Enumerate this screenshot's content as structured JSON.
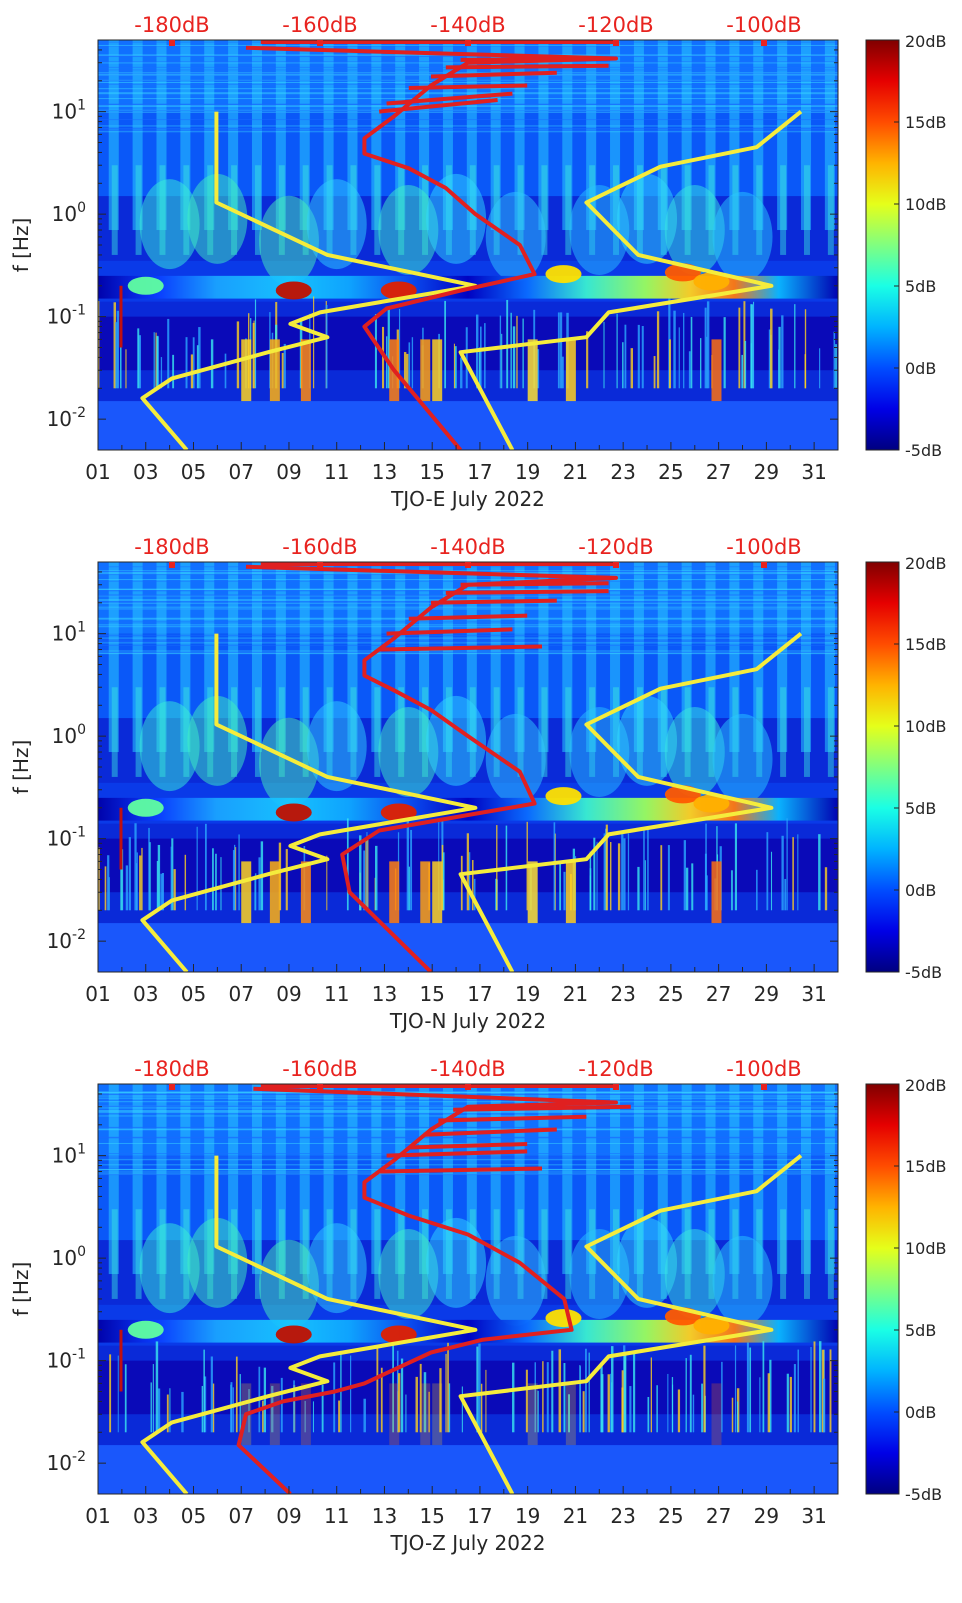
{
  "colors": {
    "colormap": "jet",
    "top_scale_color": "#e8231f",
    "red_curve": "#e02020",
    "yellow_curve": "#f5ec3c"
  },
  "chart_data": [
    {
      "type": "heatmap",
      "station_label": "TJO-E July 2022",
      "ylabel": "f [Hz]",
      "y_scale": "log",
      "y_ticks": [
        "10-2",
        "10-1",
        "100",
        "101"
      ],
      "x_ticks": [
        "01",
        "03",
        "05",
        "07",
        "09",
        "11",
        "13",
        "15",
        "17",
        "19",
        "21",
        "23",
        "25",
        "27",
        "29",
        "31"
      ],
      "xlim": [
        1,
        32
      ],
      "ylim_hz": [
        0.005,
        50
      ],
      "top_axis_labels": [
        "-180dB",
        "-160dB",
        "-140dB",
        "-120dB",
        "-100dB"
      ],
      "colorbar_labels": [
        "20dB",
        "15dB",
        "10dB",
        "5dB",
        "0dB",
        "-5dB"
      ],
      "colorbar_range_db": [
        -5,
        20
      ],
      "noise_model_low_db": [
        [
          -178,
          0.005
        ],
        [
          -184,
          0.016
        ],
        [
          -180,
          0.025
        ],
        [
          -167,
          0.045
        ],
        [
          -159,
          0.063
        ],
        [
          -164,
          0.085
        ],
        [
          -160,
          0.11
        ],
        [
          -139,
          0.2
        ],
        [
          -159,
          0.4
        ],
        [
          -174,
          1.3
        ],
        [
          -174,
          10
        ]
      ],
      "noise_model_high_db": [
        [
          -134,
          0.005
        ],
        [
          -141,
          0.045
        ],
        [
          -124,
          0.063
        ],
        [
          -121,
          0.11
        ],
        [
          -99,
          0.2
        ],
        [
          -117,
          0.4
        ],
        [
          -124,
          1.3
        ],
        [
          -114,
          2.9
        ],
        [
          -101,
          4.5
        ],
        [
          -95,
          10
        ]
      ],
      "red_curve_db": [
        [
          -141,
          0.005
        ],
        [
          -150,
          0.03
        ],
        [
          -154,
          0.08
        ],
        [
          -151,
          0.12
        ],
        [
          -141,
          0.18
        ],
        [
          -131,
          0.26
        ],
        [
          -133,
          0.5
        ],
        [
          -139,
          1.0
        ],
        [
          -143,
          1.8
        ],
        [
          -148,
          2.8
        ],
        [
          -154,
          3.9
        ],
        [
          -154,
          5.5
        ],
        [
          -150,
          9
        ],
        [
          -145,
          18
        ],
        [
          -140,
          30
        ],
        [
          -120,
          33
        ],
        [
          -170,
          42
        ]
      ],
      "red_branches_db": [
        [
          [
            -152,
            10
          ],
          [
            -136,
            13
          ]
        ],
        [
          [
            -151,
            12
          ],
          [
            -134,
            15
          ]
        ],
        [
          [
            -148,
            17
          ],
          [
            -132,
            18
          ]
        ],
        [
          [
            -145,
            22
          ],
          [
            -128,
            24
          ]
        ],
        [
          [
            -143,
            27
          ],
          [
            -121,
            28
          ]
        ],
        [
          [
            -141,
            32
          ],
          [
            -121,
            33
          ]
        ]
      ]
    },
    {
      "type": "heatmap",
      "station_label": "TJO-N July 2022",
      "ylabel": "f [Hz]",
      "y_scale": "log",
      "y_ticks": [
        "10-2",
        "10-1",
        "100",
        "101"
      ],
      "x_ticks": [
        "01",
        "03",
        "05",
        "07",
        "09",
        "11",
        "13",
        "15",
        "17",
        "19",
        "21",
        "23",
        "25",
        "27",
        "29",
        "31"
      ],
      "xlim": [
        1,
        32
      ],
      "ylim_hz": [
        0.005,
        50
      ],
      "top_axis_labels": [
        "-180dB",
        "-160dB",
        "-140dB",
        "-120dB",
        "-100dB"
      ],
      "colorbar_labels": [
        "20dB",
        "15dB",
        "10dB",
        "5dB",
        "0dB",
        "-5dB"
      ],
      "colorbar_range_db": [
        -5,
        20
      ],
      "noise_model_low_db": [
        [
          -178,
          0.005
        ],
        [
          -184,
          0.016
        ],
        [
          -180,
          0.025
        ],
        [
          -167,
          0.045
        ],
        [
          -159,
          0.063
        ],
        [
          -164,
          0.085
        ],
        [
          -160,
          0.11
        ],
        [
          -139,
          0.2
        ],
        [
          -159,
          0.4
        ],
        [
          -174,
          1.3
        ],
        [
          -174,
          10
        ]
      ],
      "noise_model_high_db": [
        [
          -134,
          0.005
        ],
        [
          -141,
          0.045
        ],
        [
          -124,
          0.063
        ],
        [
          -121,
          0.11
        ],
        [
          -99,
          0.2
        ],
        [
          -117,
          0.4
        ],
        [
          -124,
          1.3
        ],
        [
          -114,
          2.9
        ],
        [
          -101,
          4.5
        ],
        [
          -95,
          10
        ]
      ],
      "red_curve_db": [
        [
          -145,
          0.005
        ],
        [
          -156,
          0.03
        ],
        [
          -157,
          0.07
        ],
        [
          -152,
          0.12
        ],
        [
          -140,
          0.17
        ],
        [
          -131,
          0.22
        ],
        [
          -133,
          0.45
        ],
        [
          -140,
          1.0
        ],
        [
          -145,
          1.8
        ],
        [
          -150,
          2.8
        ],
        [
          -154,
          3.9
        ],
        [
          -154,
          5.5
        ],
        [
          -150,
          9
        ],
        [
          -145,
          18
        ],
        [
          -140,
          30
        ],
        [
          -120,
          35
        ],
        [
          -170,
          45
        ]
      ],
      "red_branches_db": [
        [
          [
            -152,
            7
          ],
          [
            -130,
            7.5
          ]
        ],
        [
          [
            -151,
            10
          ],
          [
            -134,
            11
          ]
        ],
        [
          [
            -148,
            14
          ],
          [
            -132,
            15
          ]
        ],
        [
          [
            -145,
            20
          ],
          [
            -128,
            21
          ]
        ],
        [
          [
            -143,
            25
          ],
          [
            -121,
            26
          ]
        ],
        [
          [
            -141,
            30
          ],
          [
            -121,
            31
          ]
        ]
      ]
    },
    {
      "type": "heatmap",
      "station_label": "TJO-Z July 2022",
      "ylabel": "f [Hz]",
      "y_scale": "log",
      "y_ticks": [
        "10-2",
        "10-1",
        "100",
        "101"
      ],
      "x_ticks": [
        "01",
        "03",
        "05",
        "07",
        "09",
        "11",
        "13",
        "15",
        "17",
        "19",
        "21",
        "23",
        "25",
        "27",
        "29",
        "31"
      ],
      "xlim": [
        1,
        32
      ],
      "ylim_hz": [
        0.005,
        50
      ],
      "top_axis_labels": [
        "-180dB",
        "-160dB",
        "-140dB",
        "-120dB",
        "-100dB"
      ],
      "colorbar_labels": [
        "20dB",
        "15dB",
        "10dB",
        "5dB",
        "0dB",
        "-5dB"
      ],
      "colorbar_range_db": [
        -5,
        20
      ],
      "noise_model_low_db": [
        [
          -178,
          0.005
        ],
        [
          -184,
          0.016
        ],
        [
          -180,
          0.025
        ],
        [
          -167,
          0.045
        ],
        [
          -159,
          0.063
        ],
        [
          -164,
          0.085
        ],
        [
          -160,
          0.11
        ],
        [
          -139,
          0.2
        ],
        [
          -159,
          0.4
        ],
        [
          -174,
          1.3
        ],
        [
          -174,
          10
        ]
      ],
      "noise_model_high_db": [
        [
          -134,
          0.005
        ],
        [
          -141,
          0.045
        ],
        [
          -124,
          0.063
        ],
        [
          -121,
          0.11
        ],
        [
          -99,
          0.2
        ],
        [
          -117,
          0.4
        ],
        [
          -124,
          1.3
        ],
        [
          -114,
          2.9
        ],
        [
          -101,
          4.5
        ],
        [
          -95,
          10
        ]
      ],
      "red_curve_db": [
        [
          -164,
          0.005
        ],
        [
          -171,
          0.015
        ],
        [
          -170,
          0.03
        ],
        [
          -165,
          0.04
        ],
        [
          -158,
          0.05
        ],
        [
          -154,
          0.06
        ],
        [
          -145,
          0.12
        ],
        [
          -138,
          0.16
        ],
        [
          -126,
          0.2
        ],
        [
          -127,
          0.4
        ],
        [
          -133,
          0.9
        ],
        [
          -140,
          1.7
        ],
        [
          -148,
          2.6
        ],
        [
          -154,
          3.9
        ],
        [
          -154,
          5.5
        ],
        [
          -150,
          9
        ],
        [
          -145,
          18
        ],
        [
          -140,
          30
        ],
        [
          -120,
          33
        ],
        [
          -169,
          45
        ]
      ],
      "red_branches_db": [
        [
          [
            -152,
            7
          ],
          [
            -130,
            7.5
          ]
        ],
        [
          [
            -151,
            10
          ],
          [
            -132,
            11
          ]
        ],
        [
          [
            -148,
            12
          ],
          [
            -132,
            13
          ]
        ],
        [
          [
            -146,
            16
          ],
          [
            -128,
            18
          ]
        ],
        [
          [
            -144,
            22
          ],
          [
            -124,
            24
          ]
        ],
        [
          [
            -142,
            28
          ],
          [
            -118,
            30
          ]
        ]
      ]
    }
  ]
}
